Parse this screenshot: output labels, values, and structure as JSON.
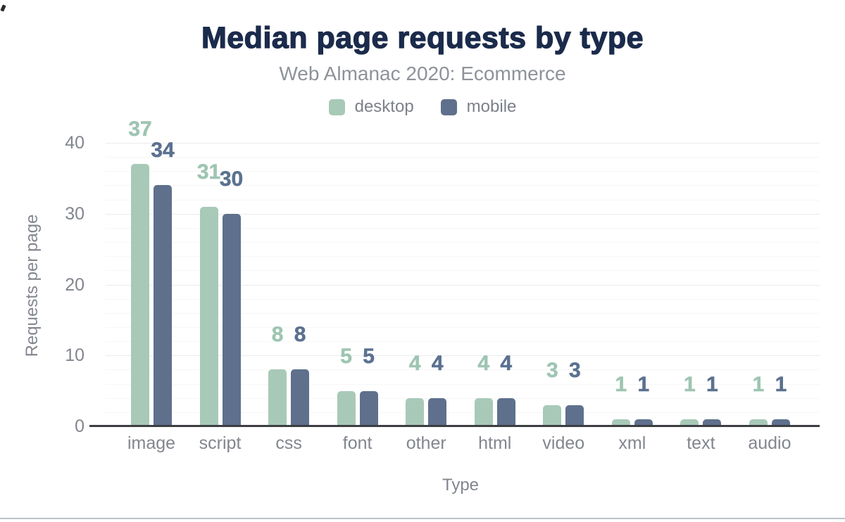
{
  "chart_data": {
    "type": "bar",
    "title": "Median page requests by type",
    "subtitle": "Web Almanac 2020: Ecommerce",
    "xlabel": "Type",
    "ylabel": "Requests per page",
    "categories": [
      "image",
      "script",
      "css",
      "font",
      "other",
      "html",
      "video",
      "xml",
      "text",
      "audio"
    ],
    "series": [
      {
        "name": "desktop",
        "color": "#a8c9b8",
        "label_color": "#9ec5b2",
        "values": [
          37,
          31,
          8,
          5,
          4,
          4,
          3,
          1,
          1,
          1
        ]
      },
      {
        "name": "mobile",
        "color": "#5e708c",
        "label_color": "#5b7190",
        "values": [
          34,
          30,
          8,
          5,
          4,
          4,
          3,
          1,
          1,
          1
        ]
      }
    ],
    "ylim": [
      0,
      40
    ],
    "yticks": [
      0,
      10,
      20,
      30,
      40
    ],
    "minor_grid_step": 2,
    "grid": "horizontal, minor every 2 units, major every 10 units",
    "legend_position": "top center",
    "value_labels": "above bars, colored per series",
    "title_color": "#1b2b4b",
    "subtitle_color": "#8e9299",
    "axis_text_color": "#82868e",
    "axis_line_color": "#3d3e42"
  }
}
